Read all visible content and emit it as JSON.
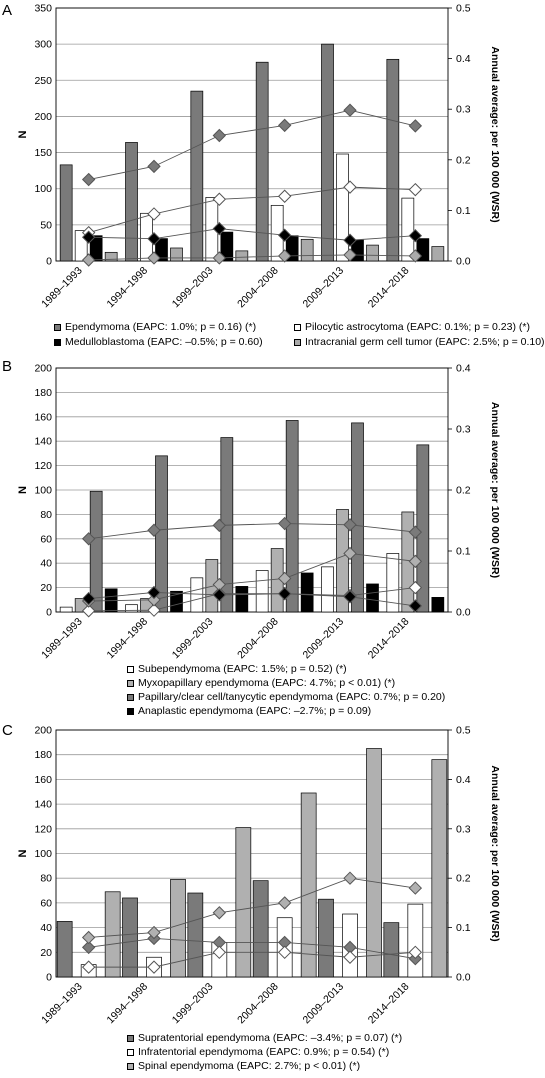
{
  "chart_data": [
    {
      "type": "bar",
      "panel": "A",
      "categories": [
        "1989–1993",
        "1994–1998",
        "1999–2003",
        "2004–2008",
        "2009–2013",
        "2014–2018"
      ],
      "ylabel": "N",
      "ylim": [
        0,
        350
      ],
      "yticks": [
        "0",
        "50",
        "100",
        "150",
        "200",
        "250",
        "300",
        "350"
      ],
      "y2label": "Annual average: per 100 000 (WSR)",
      "y2lim": [
        0,
        0.5
      ],
      "y2ticks": [
        "0.0",
        "0.1",
        "0.2",
        "0.3",
        "0.4",
        "0.5"
      ],
      "grid": true,
      "legend_position": "bottom",
      "series": [
        {
          "name": "Ependymoma (EAPC: 1.0%; p = 0.16) (*)",
          "color": "#7a7a7a",
          "values": [
            133,
            164,
            235,
            275,
            300,
            279
          ],
          "rates": [
            0.161,
            0.187,
            0.248,
            0.268,
            0.298,
            0.267
          ]
        },
        {
          "name": "Pilocytic astrocytoma (EAPC: 0.1%; p = 0.23) (*)",
          "color": "#ffffff",
          "values": [
            42,
            66,
            88,
            77,
            148,
            87
          ],
          "rates": [
            0.056,
            0.093,
            0.122,
            0.128,
            0.146,
            0.141
          ]
        },
        {
          "name": "Medulloblastoma (EAPC: –0.5%; p = 0.60)",
          "color": "#000000",
          "values": [
            35,
            31,
            40,
            35,
            29,
            31
          ],
          "rates": [
            0.047,
            0.044,
            0.064,
            0.051,
            0.041,
            0.05
          ]
        },
        {
          "name": "Intracranial germ cell tumor (EAPC: 2.5%; p = 0.10)",
          "color": "#aaaaaa",
          "values": [
            12,
            18,
            14,
            30,
            22,
            20
          ],
          "rates": [
            0.002,
            0.006,
            0.006,
            0.01,
            0.012,
            0.01
          ]
        }
      ]
    },
    {
      "type": "bar",
      "panel": "B",
      "categories": [
        "1989–1993",
        "1994–1998",
        "1999–2003",
        "2004–2008",
        "2009–2013",
        "2014–2018"
      ],
      "ylabel": "N",
      "ylim": [
        0,
        200
      ],
      "yticks": [
        "0",
        "20",
        "40",
        "60",
        "80",
        "100",
        "120",
        "140",
        "160",
        "180",
        "200"
      ],
      "y2label": "Annual average: per 100 000 (WSR)",
      "y2lim": [
        0,
        0.4
      ],
      "y2ticks": [
        "0.0",
        "0.1",
        "0.2",
        "0.3",
        "0.4"
      ],
      "grid": true,
      "legend_position": "bottom",
      "series": [
        {
          "name": "Subependymoma (EAPC: 1.5%; p = 0.52) (*)",
          "color": "#ffffff",
          "values": [
            4,
            6,
            28,
            34,
            37,
            48
          ],
          "rates": [
            0.002,
            0.003,
            0.03,
            0.03,
            0.027,
            0.04
          ]
        },
        {
          "name": "Myxopapillary ependymoma (EAPC: 4.7%; p < 0.01) (*)",
          "color": "#b0b0b0",
          "values": [
            11,
            11,
            43,
            52,
            84,
            82
          ],
          "rates": [
            0.018,
            0.02,
            0.045,
            0.055,
            0.096,
            0.083
          ]
        },
        {
          "name": "Papillary/clear cell/tanycytic ependymoma (EAPC: 0.7%; p = 0.20)",
          "color": "#7a7a7a",
          "values": [
            99,
            128,
            143,
            157,
            155,
            137
          ],
          "rates": [
            0.12,
            0.134,
            0.142,
            0.145,
            0.143,
            0.131
          ]
        },
        {
          "name": "Anaplastic ependymoma (EAPC: –2.7%; p = 0.09)",
          "color": "#000000",
          "values": [
            19,
            17,
            21,
            32,
            23,
            12
          ],
          "rates": [
            0.022,
            0.032,
            0.028,
            0.03,
            0.025,
            0.01
          ]
        }
      ]
    },
    {
      "type": "bar",
      "panel": "C",
      "categories": [
        "1989–1993",
        "1994–1998",
        "1999–2003",
        "2004–2008",
        "2009–2013",
        "2014–2018"
      ],
      "ylabel": "N",
      "ylim": [
        0,
        200
      ],
      "yticks": [
        "0",
        "20",
        "40",
        "60",
        "80",
        "100",
        "120",
        "140",
        "160",
        "180",
        "200"
      ],
      "y2label": "Annual average: per 100 000 (WSR)",
      "y2lim": [
        0,
        0.5
      ],
      "y2ticks": [
        "0.0",
        "0.1",
        "0.2",
        "0.3",
        "0.4",
        "0.5"
      ],
      "grid": true,
      "legend_position": "bottom",
      "series": [
        {
          "name": "Supratentorial ependymoma (EAPC: –3.4%; p = 0.07) (*)",
          "color": "#7a7a7a",
          "values": [
            45,
            64,
            68,
            78,
            63,
            44
          ],
          "rates": [
            0.06,
            0.078,
            0.07,
            0.07,
            0.06,
            0.037
          ]
        },
        {
          "name": "Infratentorial ependymoma (EAPC: 0.9%; p = 0.54) (*)",
          "color": "#ffffff",
          "values": [
            10,
            16,
            28,
            48,
            51,
            59
          ],
          "rates": [
            0.02,
            0.02,
            0.05,
            0.05,
            0.04,
            0.05
          ]
        },
        {
          "name": "Spinal ependymoma (EAPC: 2.7%; p < 0.01) (*)",
          "color": "#b0b0b0",
          "values": [
            69,
            79,
            121,
            149,
            185,
            176
          ],
          "rates": [
            0.08,
            0.09,
            0.13,
            0.15,
            0.2,
            0.18
          ]
        }
      ]
    }
  ]
}
